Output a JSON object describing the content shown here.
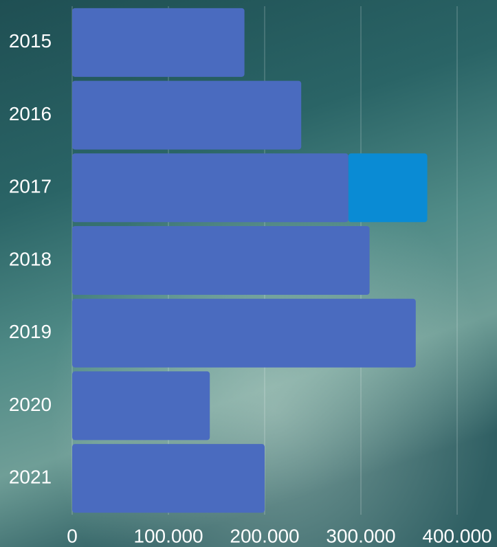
{
  "chart_data": {
    "type": "stacked-bar-horizontal",
    "categories": [
      "2015",
      "2016",
      "2017",
      "2018",
      "2019",
      "2020",
      "2021"
    ],
    "series": [
      {
        "color": "#4a6bbf",
        "values": [
          179000,
          238000,
          287000,
          309000,
          357000,
          143000,
          200000
        ]
      },
      {
        "color": "#0a8bd4",
        "values": [
          null,
          null,
          82000,
          null,
          null,
          null,
          null
        ]
      }
    ],
    "xlim": [
      0,
      440000
    ],
    "xticks": [
      0,
      {
        "value": 100000,
        "label": "100.000"
      },
      {
        "value": 200000,
        "label": "200.000"
      },
      {
        "value": 300000,
        "label": "300.000"
      },
      {
        "value": 400000,
        "label": "400.000"
      }
    ],
    "grid": true
  }
}
